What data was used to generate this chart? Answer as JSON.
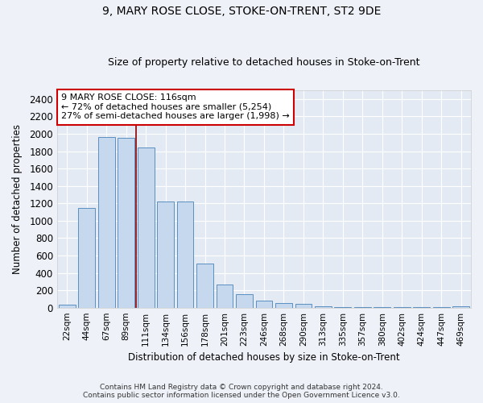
{
  "title": "9, MARY ROSE CLOSE, STOKE-ON-TRENT, ST2 9DE",
  "subtitle": "Size of property relative to detached houses in Stoke-on-Trent",
  "xlabel": "Distribution of detached houses by size in Stoke-on-Trent",
  "ylabel": "Number of detached properties",
  "categories": [
    "22sqm",
    "44sqm",
    "67sqm",
    "89sqm",
    "111sqm",
    "134sqm",
    "156sqm",
    "178sqm",
    "201sqm",
    "223sqm",
    "246sqm",
    "268sqm",
    "290sqm",
    "313sqm",
    "335sqm",
    "357sqm",
    "380sqm",
    "402sqm",
    "424sqm",
    "447sqm",
    "469sqm"
  ],
  "values": [
    30,
    1150,
    1960,
    1950,
    1840,
    1220,
    1220,
    510,
    270,
    155,
    85,
    50,
    42,
    20,
    10,
    8,
    5,
    5,
    5,
    5,
    20
  ],
  "bar_color": "#c5d8ee",
  "bar_edge_color": "#5a8fc0",
  "vline_x": 3.5,
  "vline_color": "#8b0000",
  "annotation_text": "9 MARY ROSE CLOSE: 116sqm\n← 72% of detached houses are smaller (5,254)\n27% of semi-detached houses are larger (1,998) →",
  "annotation_box_color": "white",
  "annotation_box_edge_color": "#cc0000",
  "ylim": [
    0,
    2500
  ],
  "yticks": [
    0,
    200,
    400,
    600,
    800,
    1000,
    1200,
    1400,
    1600,
    1800,
    2000,
    2200,
    2400
  ],
  "footer_line1": "Contains HM Land Registry data © Crown copyright and database right 2024.",
  "footer_line2": "Contains public sector information licensed under the Open Government Licence v3.0.",
  "background_color": "#eef2f8",
  "plot_bg_color": "#e4eaf4",
  "grid_color": "#ffffff",
  "title_fontsize": 10,
  "subtitle_fontsize": 9
}
